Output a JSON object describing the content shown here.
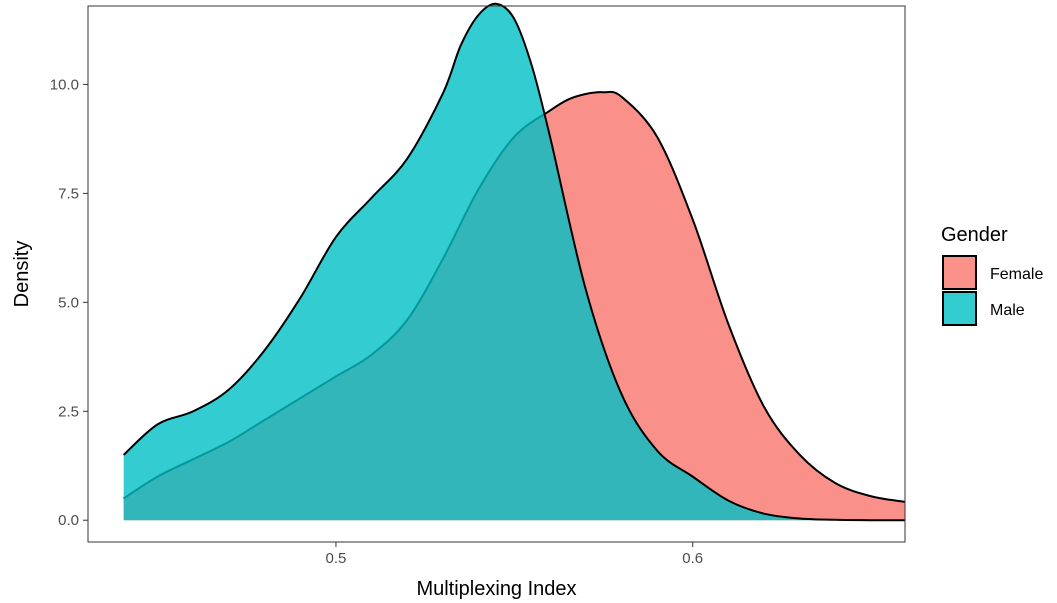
{
  "chart_data": {
    "type": "area",
    "xlabel": "Multiplexing Index",
    "ylabel": "Density",
    "xlim": [
      0.4305,
      0.6595
    ],
    "ylim": [
      -0.5,
      11.8
    ],
    "x_ticks": [
      0.5,
      0.6
    ],
    "x_tick_labels": [
      "0.5",
      "0.6"
    ],
    "y_ticks": [
      0.0,
      2.5,
      5.0,
      7.5,
      10.0
    ],
    "y_tick_labels": [
      "0.0",
      "2.5",
      "5.0",
      "7.5",
      "10.0"
    ],
    "grid": false,
    "legend": {
      "title": "Gender",
      "position": "right"
    },
    "series": [
      {
        "name": "Female",
        "color": "#F8766D",
        "x": [
          0.4405,
          0.45,
          0.46,
          0.47,
          0.48,
          0.49,
          0.5,
          0.51,
          0.52,
          0.53,
          0.54,
          0.55,
          0.56,
          0.565,
          0.57,
          0.575,
          0.58,
          0.59,
          0.6,
          0.61,
          0.62,
          0.63,
          0.64,
          0.65,
          0.6595
        ],
        "values": [
          0.5,
          1.0,
          1.4,
          1.8,
          2.3,
          2.8,
          3.3,
          3.8,
          4.6,
          6.0,
          7.6,
          8.8,
          9.4,
          9.65,
          9.78,
          9.82,
          9.72,
          8.8,
          6.9,
          4.5,
          2.6,
          1.5,
          0.85,
          0.55,
          0.42
        ]
      },
      {
        "name": "Male",
        "color": "#00BFC4",
        "x": [
          0.4405,
          0.45,
          0.46,
          0.47,
          0.48,
          0.49,
          0.5,
          0.51,
          0.52,
          0.53,
          0.535,
          0.54,
          0.545,
          0.55,
          0.555,
          0.56,
          0.57,
          0.58,
          0.59,
          0.6,
          0.61,
          0.62,
          0.63,
          0.64,
          0.65,
          0.6595
        ],
        "values": [
          1.5,
          2.2,
          2.5,
          3.0,
          3.9,
          5.1,
          6.5,
          7.4,
          8.3,
          9.8,
          10.9,
          11.6,
          11.85,
          11.5,
          10.4,
          8.8,
          5.3,
          2.9,
          1.6,
          1.0,
          0.45,
          0.15,
          0.04,
          0.01,
          0.0,
          0.0
        ]
      }
    ]
  }
}
